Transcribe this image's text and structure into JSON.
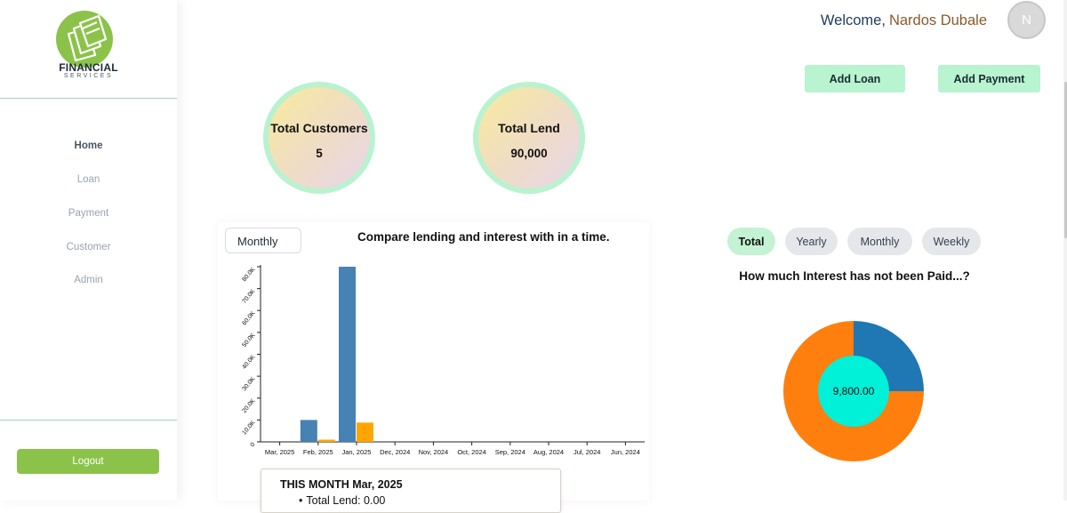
{
  "brand": {
    "title": "FINANCIAL",
    "subtitle": "SERVICES",
    "icon": "money-bills-icon",
    "color": "#8bc34a"
  },
  "sidebar": {
    "items": [
      {
        "label": "Home",
        "active": true
      },
      {
        "label": "Loan",
        "active": false
      },
      {
        "label": "Payment",
        "active": false
      },
      {
        "label": "Customer",
        "active": false
      },
      {
        "label": "Admin",
        "active": false
      }
    ],
    "logout_label": "Logout"
  },
  "header": {
    "welcome": "Welcome,",
    "user_name": "Nardos Dubale",
    "avatar_initial": "N"
  },
  "actions": {
    "add_loan": "Add Loan",
    "add_payment": "Add Payment"
  },
  "stats": [
    {
      "label": "Total Customers",
      "value": "5"
    },
    {
      "label": "Total Lend",
      "value": "90,000"
    }
  ],
  "chart_section": {
    "period": "Monthly",
    "title": "Compare lending and interest with in a time."
  },
  "chart_data": {
    "type": "bar",
    "categories": [
      "Mar, 2025",
      "Feb, 2025",
      "Jan, 2025",
      "Dec, 2024",
      "Nov, 2024",
      "Oct, 2024",
      "Sep, 2024",
      "Aug, 2024",
      "Jul, 2024",
      "Jun, 2024"
    ],
    "series": [
      {
        "values": [
          0,
          10000,
          80000,
          0,
          0,
          0,
          0,
          0,
          0,
          0
        ],
        "color": "#4682b4"
      },
      {
        "values": [
          0,
          1000,
          8800,
          0,
          0,
          0,
          0,
          0,
          0,
          0
        ],
        "color": "#ffa500"
      }
    ],
    "ylim": [
      0,
      80000
    ],
    "yticks": [
      "0",
      "10.0K",
      "20.0K",
      "30.0K",
      "40.0K",
      "50.0K",
      "60.0K",
      "70.0K",
      "80.0K"
    ]
  },
  "summary": {
    "title": "THIS MONTH Mar, 2025",
    "first_item": "Total Lend: 0.00"
  },
  "interest": {
    "tabs": [
      {
        "label": "Total",
        "active": true
      },
      {
        "label": "Yearly",
        "active": false
      },
      {
        "label": "Monthly",
        "active": false
      },
      {
        "label": "Weekly",
        "active": false
      }
    ],
    "title": "How much Interest has not been Paid...?",
    "center_label": "9,800.00",
    "pie": [
      {
        "value": 0.25,
        "color": "#1f77b4"
      },
      {
        "value": 0.75,
        "color": "#ff7f0e"
      }
    ],
    "center_color": "#00f0d8"
  }
}
